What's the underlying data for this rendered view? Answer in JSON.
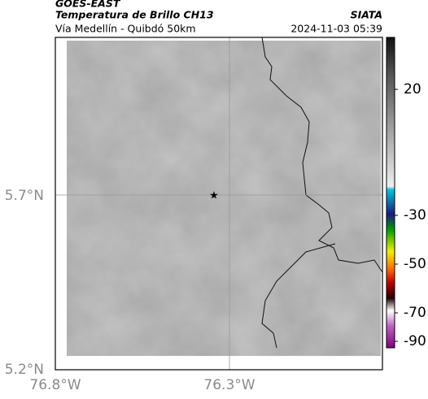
{
  "header": {
    "source": "GOES-EAST",
    "title": "Temperatura de Brillo CH13",
    "org": "SIATA",
    "subtitle": "Vía Medellín - Quibdó 50km",
    "timestamp": "2024-11-03 05:39"
  },
  "map": {
    "lat_labels": [
      "5.7°N",
      "5.2°N"
    ],
    "lon_labels": [
      "76.8°W",
      "76.3°W"
    ]
  },
  "colorbar": {
    "tick_labels": [
      "20",
      "-30",
      "-50",
      "-70",
      "-90"
    ]
  }
}
